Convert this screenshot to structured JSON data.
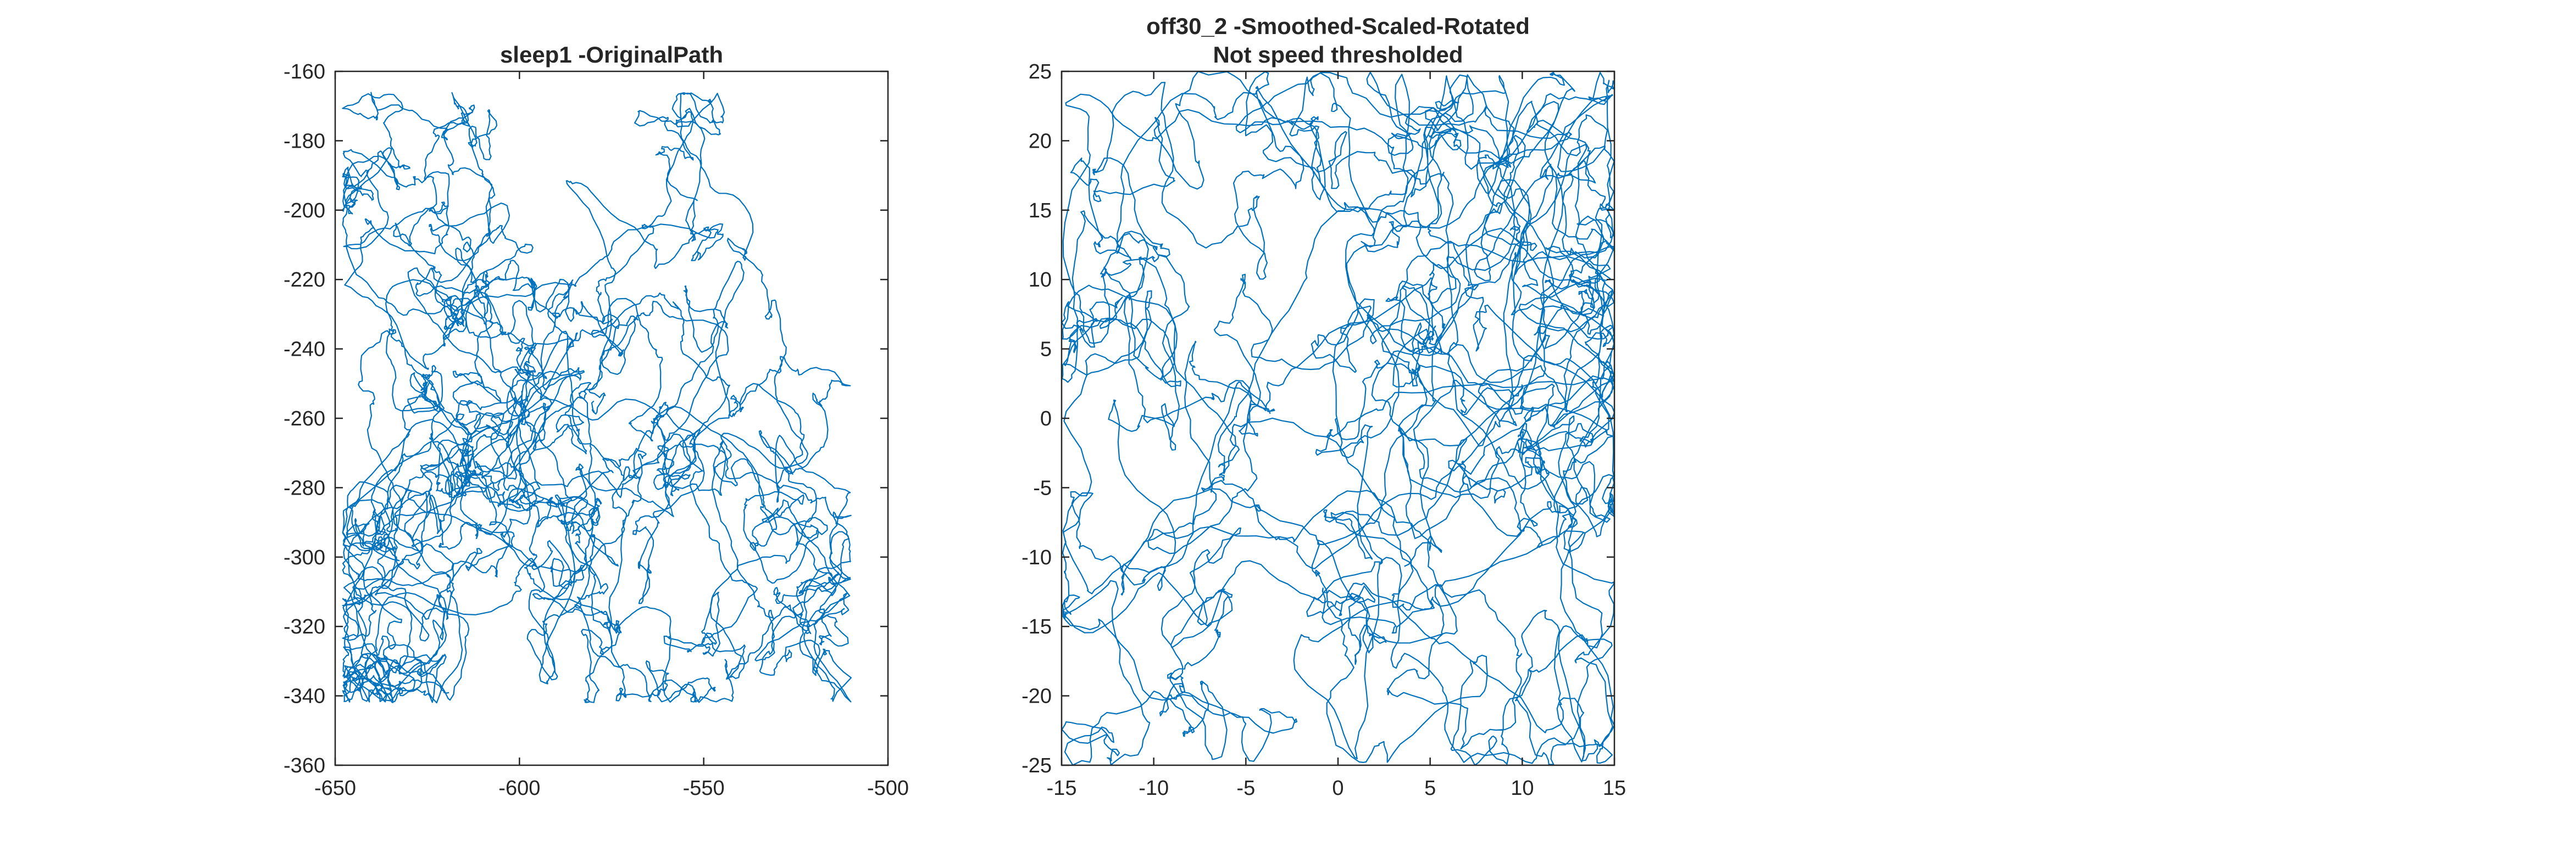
{
  "figure": {
    "background": "#ffffff",
    "line_color": "#0072BD",
    "axis_color": "#262626"
  },
  "chart_data": [
    {
      "type": "line",
      "title": [
        "sleep1 -OriginalPath"
      ],
      "xlabel": "",
      "ylabel": "",
      "xlim": [
        -650,
        -500
      ],
      "ylim": [
        -360,
        -160
      ],
      "xticks": [
        -650,
        -600,
        -550,
        -500
      ],
      "yticks": [
        -160,
        -180,
        -200,
        -220,
        -240,
        -260,
        -280,
        -300,
        -320,
        -340,
        -360
      ],
      "grid": false,
      "series": [
        {
          "trajectory_extent": {
            "x": [
              -648,
              -510
            ],
            "y": [
              -342,
              -166
            ]
          },
          "color": "#0072BD"
        }
      ]
    },
    {
      "type": "line",
      "title": [
        "off30_2 -Smoothed-Scaled-Rotated",
        "Not speed thresholded"
      ],
      "xlabel": "",
      "ylabel": "",
      "xlim": [
        -15,
        15
      ],
      "ylim": [
        -25,
        25
      ],
      "xticks": [
        -15,
        -10,
        -5,
        0,
        5,
        10,
        15
      ],
      "yticks": [
        25,
        20,
        15,
        10,
        5,
        0,
        -5,
        -10,
        -15,
        -20,
        -25
      ],
      "grid": false,
      "series": [
        {
          "trajectory_extent": {
            "x": [
              -15,
              15
            ],
            "y": [
              -25,
              25
            ]
          },
          "color": "#0072BD"
        }
      ]
    }
  ]
}
